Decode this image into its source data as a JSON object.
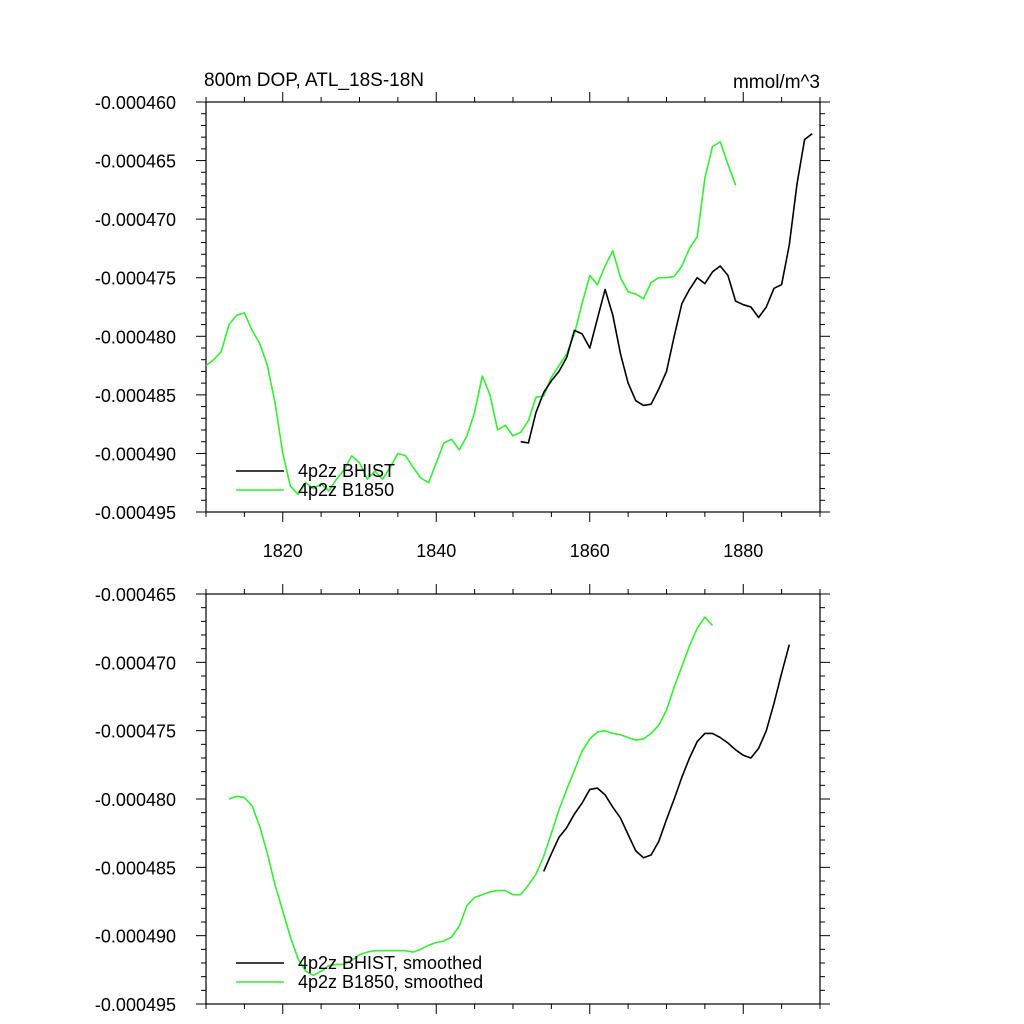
{
  "chart_data": [
    {
      "type": "line",
      "title": "800m DOP, ATL_18S-18N",
      "units": "mmol/m^3",
      "xlabel": "",
      "ylabel": "",
      "xlim": [
        1810,
        1890
      ],
      "ylim": [
        -0.000495,
        -0.00046
      ],
      "xticks": [
        1820,
        1840,
        1860,
        1880
      ],
      "xtick_labels": [
        "1820",
        "1840",
        "1860",
        "1880"
      ],
      "yticks": [
        -0.000495,
        -0.00049,
        -0.000485,
        -0.00048,
        -0.000475,
        -0.00047,
        -0.000465,
        -0.00046
      ],
      "ytick_labels": [
        "-0.000495",
        "-0.000490",
        "-0.000485",
        "-0.000480",
        "-0.000475",
        "-0.000470",
        "-0.000465",
        "-0.000460"
      ],
      "legend_position": "bottom-left",
      "series": [
        {
          "name": "4p2z BHIST",
          "color": "#000000",
          "x": [
            1851,
            1852,
            1853,
            1854,
            1855,
            1856,
            1857,
            1858,
            1859,
            1860,
            1861,
            1862,
            1863,
            1864,
            1865,
            1866,
            1867,
            1868,
            1869,
            1870,
            1871,
            1872,
            1873,
            1874,
            1875,
            1876,
            1877,
            1878,
            1879,
            1880,
            1881,
            1882,
            1883,
            1884,
            1885,
            1886,
            1887,
            1888,
            1889
          ],
          "values": [
            -0.000489,
            -0.0004891,
            -0.0004865,
            -0.0004848,
            -0.0004838,
            -0.000483,
            -0.0004818,
            -0.0004795,
            -0.0004798,
            -0.000481,
            -0.0004785,
            -0.000476,
            -0.0004782,
            -0.0004815,
            -0.000484,
            -0.0004855,
            -0.0004859,
            -0.0004858,
            -0.0004845,
            -0.000483,
            -0.00048,
            -0.0004772,
            -0.000476,
            -0.000475,
            -0.0004755,
            -0.0004745,
            -0.000474,
            -0.0004748,
            -0.000477,
            -0.0004773,
            -0.0004775,
            -0.0004784,
            -0.0004775,
            -0.0004759,
            -0.0004756,
            -0.0004722,
            -0.000467,
            -0.0004632,
            -0.0004627
          ]
        },
        {
          "name": "4p2z B1850",
          "color": "#33ee33",
          "x": [
            1810,
            1811,
            1812,
            1813,
            1814,
            1815,
            1816,
            1817,
            1818,
            1819,
            1820,
            1821,
            1822,
            1823,
            1824,
            1825,
            1826,
            1827,
            1828,
            1829,
            1830,
            1831,
            1832,
            1833,
            1834,
            1835,
            1836,
            1837,
            1838,
            1839,
            1840,
            1841,
            1842,
            1843,
            1844,
            1845,
            1846,
            1847,
            1848,
            1849,
            1850,
            1851,
            1852,
            1853,
            1854,
            1855,
            1856,
            1857,
            1858,
            1859,
            1860,
            1861,
            1862,
            1863,
            1864,
            1865,
            1866,
            1867,
            1868,
            1869,
            1870,
            1871,
            1872,
            1873,
            1874,
            1875,
            1876,
            1877,
            1878,
            1879
          ],
          "values": [
            -0.0004825,
            -0.000482,
            -0.0004813,
            -0.000479,
            -0.0004782,
            -0.000478,
            -0.0004795,
            -0.0004806,
            -0.0004825,
            -0.0004857,
            -0.00049,
            -0.0004928,
            -0.0004935,
            -0.0004925,
            -0.000493,
            -0.0004926,
            -0.0004932,
            -0.0004922,
            -0.0004914,
            -0.0004902,
            -0.0004908,
            -0.0004922,
            -0.0004915,
            -0.0004922,
            -0.0004912,
            -0.00049,
            -0.0004902,
            -0.0004912,
            -0.0004921,
            -0.0004925,
            -0.0004908,
            -0.0004891,
            -0.0004888,
            -0.0004897,
            -0.0004885,
            -0.0004865,
            -0.0004834,
            -0.000485,
            -0.000488,
            -0.0004876,
            -0.0004885,
            -0.0004882,
            -0.0004872,
            -0.0004852,
            -0.0004851,
            -0.0004835,
            -0.0004825,
            -0.0004815,
            -0.0004798,
            -0.0004772,
            -0.0004748,
            -0.0004756,
            -0.000474,
            -0.0004727,
            -0.000475,
            -0.0004762,
            -0.0004764,
            -0.0004768,
            -0.0004754,
            -0.000475,
            -0.000475,
            -0.0004749,
            -0.000474,
            -0.0004725,
            -0.0004715,
            -0.0004665,
            -0.0004638,
            -0.0004634,
            -0.0004653,
            -0.0004671
          ]
        }
      ]
    },
    {
      "type": "line",
      "title": "",
      "xlabel": "",
      "ylabel": "",
      "xlim": [
        1810,
        1890
      ],
      "ylim": [
        -0.000495,
        -0.000465
      ],
      "xticks": [
        1820,
        1840,
        1860,
        1880
      ],
      "xtick_labels": [],
      "yticks": [
        -0.000495,
        -0.00049,
        -0.000485,
        -0.00048,
        -0.000475,
        -0.00047,
        -0.000465
      ],
      "ytick_labels": [
        "-0.000495",
        "-0.000490",
        "-0.000485",
        "-0.000480",
        "-0.000475",
        "-0.000470",
        "-0.000465"
      ],
      "legend_position": "bottom-left",
      "series": [
        {
          "name": "4p2z BHIST, smoothed",
          "color": "#000000",
          "x": [
            1854,
            1855,
            1856,
            1857,
            1858,
            1859,
            1860,
            1861,
            1862,
            1863,
            1864,
            1865,
            1866,
            1867,
            1868,
            1869,
            1870,
            1871,
            1872,
            1873,
            1874,
            1875,
            1876,
            1877,
            1878,
            1879,
            1880,
            1881,
            1882,
            1883,
            1884,
            1885,
            1886
          ],
          "values": [
            -0.0004853,
            -0.000484,
            -0.0004828,
            -0.0004821,
            -0.0004811,
            -0.0004803,
            -0.0004793,
            -0.0004792,
            -0.0004797,
            -0.0004806,
            -0.0004814,
            -0.0004826,
            -0.0004838,
            -0.0004843,
            -0.0004841,
            -0.0004831,
            -0.0004815,
            -0.00048,
            -0.0004784,
            -0.000477,
            -0.0004758,
            -0.0004752,
            -0.0004752,
            -0.0004755,
            -0.0004759,
            -0.0004764,
            -0.0004768,
            -0.000477,
            -0.0004763,
            -0.000475,
            -0.000473,
            -0.0004708,
            -0.0004687
          ]
        },
        {
          "name": "4p2z B1850, smoothed",
          "color": "#33ee33",
          "x": [
            1813,
            1814,
            1815,
            1816,
            1817,
            1818,
            1819,
            1820,
            1821,
            1822,
            1823,
            1824,
            1825,
            1826,
            1827,
            1828,
            1829,
            1830,
            1831,
            1832,
            1833,
            1834,
            1835,
            1836,
            1837,
            1838,
            1839,
            1840,
            1841,
            1842,
            1843,
            1844,
            1845,
            1846,
            1847,
            1848,
            1849,
            1850,
            1851,
            1852,
            1853,
            1854,
            1855,
            1856,
            1857,
            1858,
            1859,
            1860,
            1861,
            1862,
            1863,
            1864,
            1865,
            1866,
            1867,
            1868,
            1869,
            1870,
            1871,
            1872,
            1873,
            1874,
            1875,
            1876
          ],
          "values": [
            -0.00048,
            -0.0004798,
            -0.0004799,
            -0.0004805,
            -0.000482,
            -0.000484,
            -0.0004863,
            -0.0004882,
            -0.0004901,
            -0.0004917,
            -0.0004926,
            -0.0004929,
            -0.0004926,
            -0.0004922,
            -0.0004921,
            -0.0004921,
            -0.0004918,
            -0.0004914,
            -0.0004912,
            -0.0004911,
            -0.0004911,
            -0.0004911,
            -0.0004911,
            -0.0004911,
            -0.0004912,
            -0.000491,
            -0.0004907,
            -0.0004905,
            -0.0004904,
            -0.0004901,
            -0.0004893,
            -0.0004878,
            -0.0004872,
            -0.000487,
            -0.0004868,
            -0.0004867,
            -0.0004867,
            -0.000487,
            -0.000487,
            -0.0004863,
            -0.0004855,
            -0.0004842,
            -0.0004825,
            -0.0004808,
            -0.0004793,
            -0.0004779,
            -0.0004765,
            -0.0004756,
            -0.0004751,
            -0.000475,
            -0.0004752,
            -0.0004753,
            -0.0004755,
            -0.0004757,
            -0.0004756,
            -0.0004752,
            -0.0004746,
            -0.0004735,
            -0.0004718,
            -0.0004703,
            -0.0004688,
            -0.0004675,
            -0.0004667,
            -0.0004673
          ]
        }
      ]
    }
  ]
}
